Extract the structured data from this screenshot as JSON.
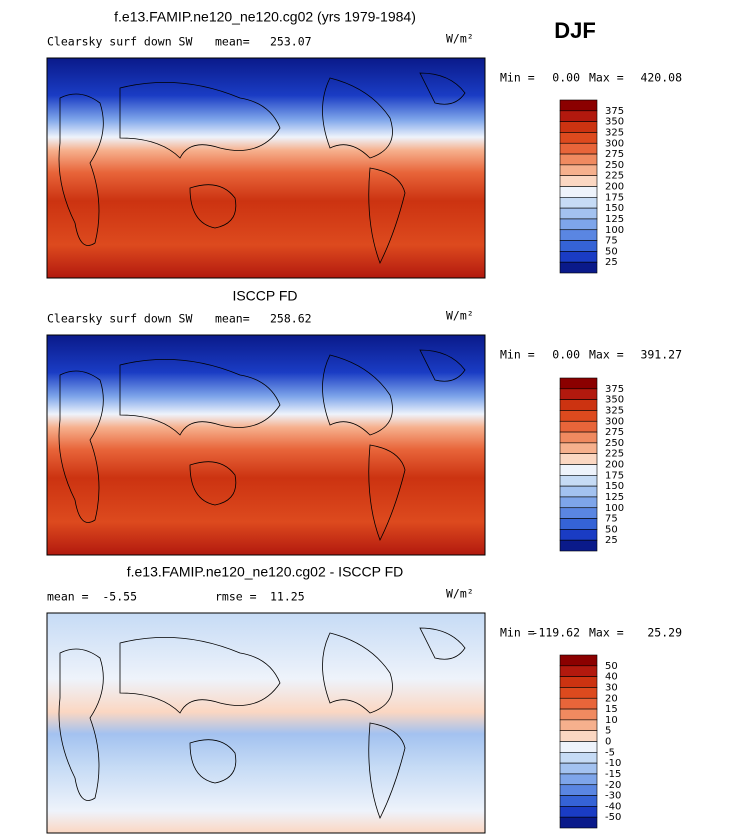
{
  "season": "DJF",
  "panels": [
    {
      "title": "f.e13.FAMIP.ne120_ne120.cg02 (yrs 1979-1984)",
      "left": "Clearsky surf down SW",
      "mid_label": "mean=",
      "mid_value": "253.07",
      "units": "W/m²",
      "min_label": "Min =",
      "min": "0.00",
      "max_label": "Max =",
      "max": "420.08",
      "levels": [
        375,
        350,
        325,
        300,
        275,
        250,
        225,
        200,
        175,
        150,
        125,
        100,
        75,
        50,
        25
      ],
      "colors": [
        "#8b0000",
        "#b2190e",
        "#cc3311",
        "#dd4a1e",
        "#e8653a",
        "#f08a60",
        "#f6b08d",
        "#fbd7c2",
        "#eef3fb",
        "#c6dbf5",
        "#a3c2f0",
        "#7ea5ea",
        "#5a86e2",
        "#3563d6",
        "#1a3cc4",
        "#0a1a8a"
      ]
    },
    {
      "title": "ISCCP FD",
      "left": "Clearsky surf down SW",
      "mid_label": "mean=",
      "mid_value": "258.62",
      "units": "W/m²",
      "min_label": "Min =",
      "min": "0.00",
      "max_label": "Max =",
      "max": "391.27",
      "levels": [
        375,
        350,
        325,
        300,
        275,
        250,
        225,
        200,
        175,
        150,
        125,
        100,
        75,
        50,
        25
      ],
      "colors": [
        "#8b0000",
        "#b2190e",
        "#cc3311",
        "#dd4a1e",
        "#e8653a",
        "#f08a60",
        "#f6b08d",
        "#fbd7c2",
        "#eef3fb",
        "#c6dbf5",
        "#a3c2f0",
        "#7ea5ea",
        "#5a86e2",
        "#3563d6",
        "#1a3cc4",
        "#0a1a8a"
      ]
    },
    {
      "title": "f.e13.FAMIP.ne120_ne120.cg02 - ISCCP FD",
      "left": "mean =  -5.55",
      "mid_label": "rmse =",
      "mid_value": "11.25",
      "units": "W/m²",
      "min_label": "Min =",
      "min": "-119.62",
      "max_label": "Max =",
      "max": "25.29",
      "levels": [
        50,
        40,
        30,
        20,
        15,
        10,
        5,
        0,
        -5,
        -10,
        -15,
        -20,
        -30,
        -40,
        -50
      ],
      "colors": [
        "#8b0000",
        "#b2190e",
        "#cc3311",
        "#dd4a1e",
        "#e8653a",
        "#f08a60",
        "#f6b08d",
        "#fbd7c2",
        "#eef3fb",
        "#c6dbf5",
        "#a3c2f0",
        "#7ea5ea",
        "#5a86e2",
        "#3563d6",
        "#1a3cc4",
        "#0a1a8a"
      ]
    }
  ]
}
